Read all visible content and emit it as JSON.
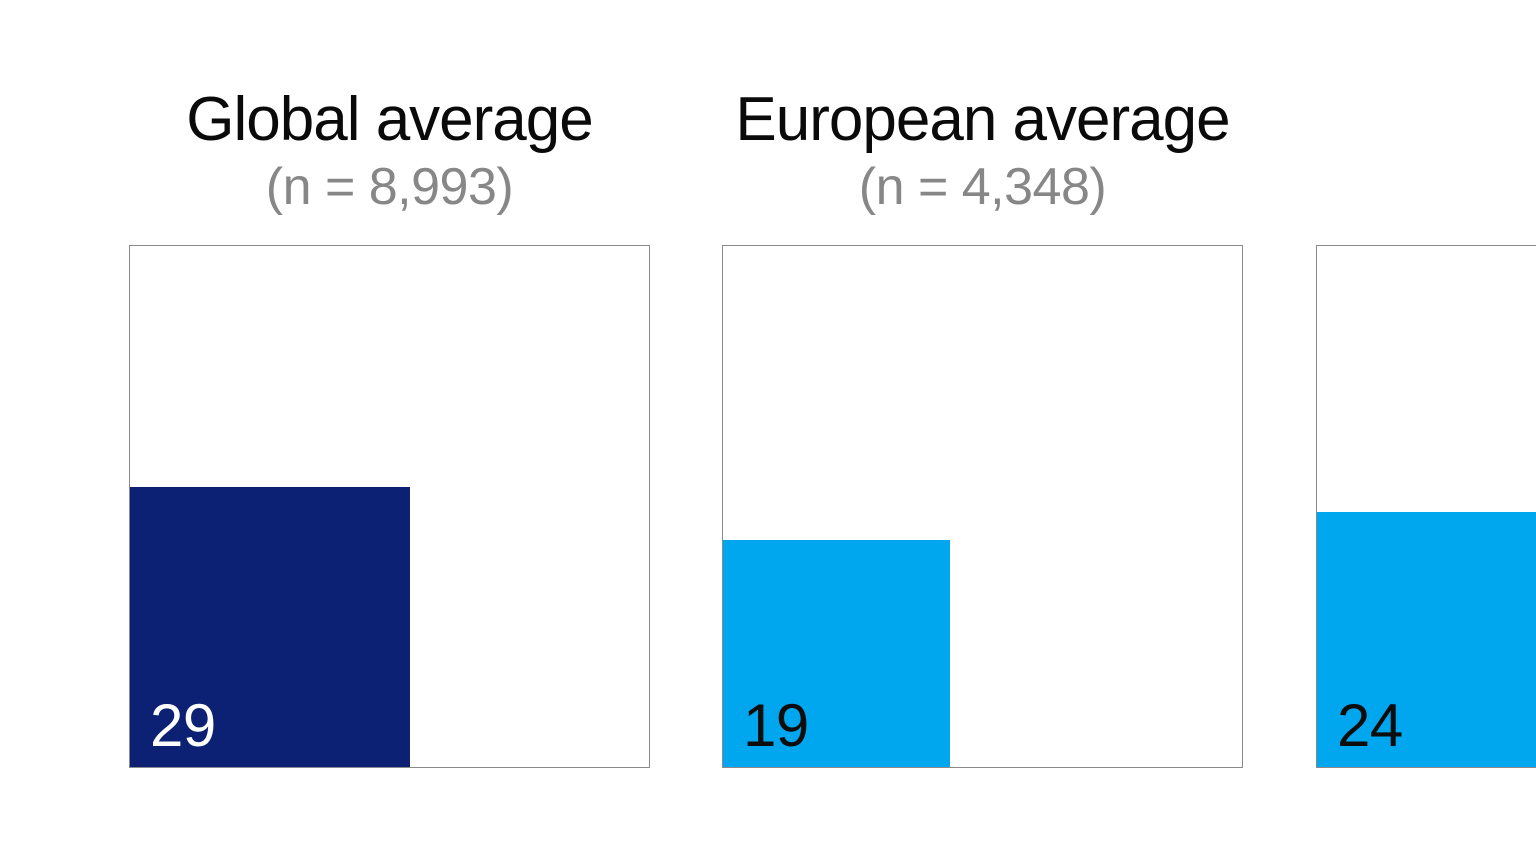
{
  "page": {
    "background": "#ffffff",
    "note_visible_panels": 3
  },
  "chart_data": {
    "type": "bar",
    "variant": "proportional-area-squares",
    "description": "Each filled square's area is proportional to its percentage value; the outlined square represents 100.",
    "scale_max": 100,
    "grid": false,
    "legend_position": "none",
    "categories": [
      "Global average",
      "European average",
      ""
    ],
    "values": [
      29,
      19,
      24
    ],
    "panels": [
      {
        "title": "Global average",
        "subtitle": "(n = 8,993)",
        "sample_size": "8,993",
        "value": 29,
        "fill_color": "#0c2074",
        "label_color": "#ffffff"
      },
      {
        "title": "European average",
        "subtitle": "(n = 4,348)",
        "sample_size": "4,348",
        "value": 19,
        "fill_color": "#00a7ef",
        "label_color": "#0d0d0d"
      },
      {
        "title": "",
        "subtitle": "",
        "value": 24,
        "fill_color": "#00a7ef",
        "label_color": "#0d0d0d",
        "clipped_by_viewport": true
      }
    ],
    "colors": {
      "panel_border": "#8a8a8a",
      "title_text": "#0a0a0a",
      "subtitle_text": "#878787",
      "background": "#ffffff"
    }
  }
}
